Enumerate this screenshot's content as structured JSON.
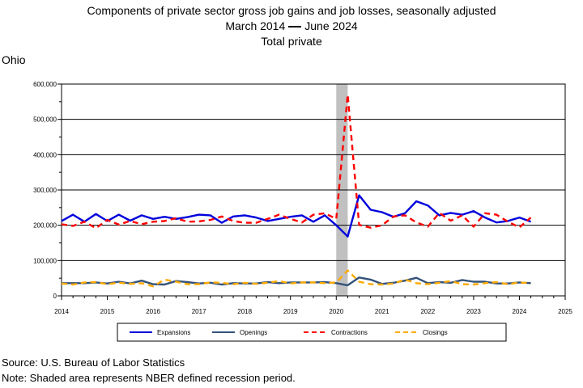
{
  "header": {
    "line1": "Components of private sector gross job gains and job losses, seasonally adjusted",
    "from": "March 2014",
    "to": "June 2024",
    "line3": "Total private"
  },
  "region": "Ohio",
  "footer": {
    "source": "Source: U.S. Bureau of Labor Statistics",
    "note": "Note: Shaded area represents NBER defined recession period."
  },
  "chart_data": {
    "type": "line",
    "title": "Components of private sector gross job gains and job losses, seasonally adjusted",
    "xlim": [
      2014,
      2025
    ],
    "ylim": [
      0,
      600000
    ],
    "x_ticks": [
      "2014",
      "2015",
      "2016",
      "2017",
      "2018",
      "2019",
      "2020",
      "2021",
      "2022",
      "2023",
      "2024",
      "2025"
    ],
    "y_ticks": [
      "0",
      "100,000",
      "200,000",
      "300,000",
      "400,000",
      "500,000",
      "600,000"
    ],
    "y_tick_values": [
      0,
      100000,
      200000,
      300000,
      400000,
      500000,
      600000
    ],
    "grid": true,
    "legend_position": "bottom",
    "recession": [
      2020.0,
      2020.25
    ],
    "x": [
      2014.0,
      2014.25,
      2014.5,
      2014.75,
      2015.0,
      2015.25,
      2015.5,
      2015.75,
      2016.0,
      2016.25,
      2016.5,
      2016.75,
      2017.0,
      2017.25,
      2017.5,
      2017.75,
      2018.0,
      2018.25,
      2018.5,
      2018.75,
      2019.0,
      2019.25,
      2019.5,
      2019.75,
      2020.0,
      2020.25,
      2020.5,
      2020.75,
      2021.0,
      2021.25,
      2021.5,
      2021.75,
      2022.0,
      2022.25,
      2022.5,
      2022.75,
      2023.0,
      2023.25,
      2023.5,
      2023.75,
      2024.0,
      2024.25
    ],
    "series": [
      {
        "name": "Expansions",
        "color": "#0000dd",
        "style": "solid",
        "width": 2.4,
        "values": [
          212000,
          230000,
          210000,
          232000,
          212000,
          230000,
          213000,
          228000,
          218000,
          224000,
          218000,
          223000,
          230000,
          228000,
          207000,
          225000,
          228000,
          222000,
          212000,
          218000,
          224000,
          228000,
          210000,
          228000,
          200000,
          168000,
          285000,
          244000,
          237000,
          224000,
          234000,
          268000,
          256000,
          228000,
          235000,
          230000,
          240000,
          222000,
          208000,
          212000,
          222000,
          210000
        ]
      },
      {
        "name": "Openings",
        "color": "#34527a",
        "style": "solid",
        "width": 2.4,
        "values": [
          36000,
          36000,
          36000,
          38000,
          35000,
          40000,
          35000,
          43000,
          33000,
          32000,
          42000,
          39000,
          35000,
          37000,
          32000,
          36000,
          35000,
          35000,
          39000,
          36000,
          38000,
          38000,
          38000,
          39000,
          36000,
          30000,
          52000,
          46000,
          34000,
          37000,
          43000,
          51000,
          36000,
          39000,
          37000,
          45000,
          40000,
          40000,
          35000,
          35000,
          38000,
          36000
        ]
      },
      {
        "name": "Contractions",
        "color": "#ff0000",
        "style": "dashed",
        "width": 2.4,
        "values": [
          203000,
          198000,
          210000,
          192000,
          215000,
          202000,
          212000,
          203000,
          210000,
          212000,
          220000,
          210000,
          211000,
          215000,
          225000,
          212000,
          207000,
          207000,
          218000,
          230000,
          218000,
          208000,
          230000,
          234000,
          218000,
          570000,
          201000,
          193000,
          200000,
          225000,
          228000,
          208000,
          196000,
          235000,
          213000,
          228000,
          196000,
          234000,
          230000,
          210000,
          194000,
          222000
        ]
      },
      {
        "name": "Closings",
        "color": "#ffaa00",
        "style": "dashed",
        "width": 2.4,
        "values": [
          35000,
          32000,
          38000,
          39000,
          33000,
          37000,
          34000,
          36000,
          27000,
          46000,
          40000,
          33000,
          33000,
          38000,
          37000,
          33000,
          37000,
          34000,
          37000,
          42000,
          35000,
          38000,
          38000,
          36000,
          38000,
          72000,
          40000,
          33000,
          32000,
          35000,
          46000,
          36000,
          33000,
          37000,
          42000,
          33000,
          32000,
          36000,
          39000,
          33000,
          38000,
          36000
        ]
      }
    ]
  }
}
